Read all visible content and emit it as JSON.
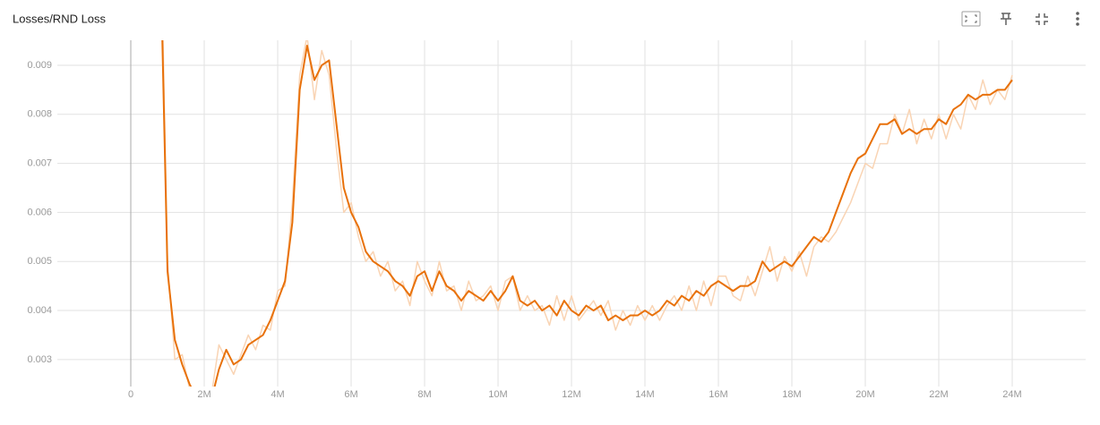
{
  "chart_data": {
    "type": "line",
    "title": "Losses/RND Loss",
    "xlim": [
      -2000000,
      26000000
    ],
    "ylim": [
      0.00245,
      0.00951
    ],
    "yticks": [
      0.003,
      0.004,
      0.005,
      0.006,
      0.007,
      0.008,
      0.009
    ],
    "xticks": [
      {
        "value": 0,
        "label": "0"
      },
      {
        "value": 2000000,
        "label": "2M"
      },
      {
        "value": 4000000,
        "label": "4M"
      },
      {
        "value": 6000000,
        "label": "6M"
      },
      {
        "value": 8000000,
        "label": "8M"
      },
      {
        "value": 10000000,
        "label": "10M"
      },
      {
        "value": 12000000,
        "label": "12M"
      },
      {
        "value": 14000000,
        "label": "14M"
      },
      {
        "value": 16000000,
        "label": "16M"
      },
      {
        "value": 18000000,
        "label": "18M"
      },
      {
        "value": 20000000,
        "label": "20M"
      },
      {
        "value": 22000000,
        "label": "22M"
      },
      {
        "value": 24000000,
        "label": "24M"
      }
    ],
    "grid": true,
    "x": [
      800000,
      1000000,
      1200000,
      1400000,
      1600000,
      1800000,
      2000000,
      2200000,
      2400000,
      2600000,
      2800000,
      3000000,
      3200000,
      3400000,
      3600000,
      3800000,
      4000000,
      4200000,
      4400000,
      4600000,
      4800000,
      5000000,
      5200000,
      5400000,
      5600000,
      5800000,
      6000000,
      6200000,
      6400000,
      6600000,
      6800000,
      7000000,
      7200000,
      7400000,
      7600000,
      7800000,
      8000000,
      8200000,
      8400000,
      8600000,
      8800000,
      9000000,
      9200000,
      9400000,
      9600000,
      9800000,
      10000000,
      10200000,
      10400000,
      10600000,
      10800000,
      11000000,
      11200000,
      11400000,
      11600000,
      11800000,
      12000000,
      12200000,
      12400000,
      12600000,
      12800000,
      13000000,
      13200000,
      13400000,
      13600000,
      13800000,
      14000000,
      14200000,
      14400000,
      14600000,
      14800000,
      15000000,
      15200000,
      15400000,
      15600000,
      15800000,
      16000000,
      16200000,
      16400000,
      16600000,
      16800000,
      17000000,
      17200000,
      17400000,
      17600000,
      17800000,
      18000000,
      18200000,
      18400000,
      18600000,
      18800000,
      19000000,
      19200000,
      19400000,
      19600000,
      19800000,
      20000000,
      20200000,
      20400000,
      20600000,
      20800000,
      21000000,
      21200000,
      21400000,
      21600000,
      21800000,
      22000000,
      22200000,
      22400000,
      22600000,
      22800000,
      23000000,
      23200000,
      23400000,
      23600000,
      23800000,
      24000000
    ],
    "series": [
      {
        "color": "#f9d4b4",
        "width": 1.5,
        "values": [
          0.0125,
          0.005,
          0.003,
          0.0031,
          0.0024,
          0.0021,
          0.002,
          0.0023,
          0.0033,
          0.003,
          0.0027,
          0.0031,
          0.0035,
          0.0032,
          0.0037,
          0.0036,
          0.0044,
          0.0045,
          0.0062,
          0.0088,
          0.0096,
          0.0083,
          0.0093,
          0.0088,
          0.0073,
          0.006,
          0.0062,
          0.0055,
          0.005,
          0.0052,
          0.0047,
          0.005,
          0.0044,
          0.0046,
          0.0041,
          0.005,
          0.0046,
          0.0043,
          0.005,
          0.0044,
          0.0045,
          0.004,
          0.0046,
          0.0042,
          0.0043,
          0.0045,
          0.004,
          0.0046,
          0.0047,
          0.004,
          0.0043,
          0.004,
          0.0041,
          0.0037,
          0.0043,
          0.0038,
          0.0043,
          0.0038,
          0.004,
          0.0042,
          0.0039,
          0.0042,
          0.0036,
          0.004,
          0.0037,
          0.0041,
          0.0038,
          0.0041,
          0.0038,
          0.0041,
          0.0043,
          0.004,
          0.0045,
          0.004,
          0.0046,
          0.0041,
          0.0047,
          0.0047,
          0.0043,
          0.0042,
          0.0047,
          0.0043,
          0.0048,
          0.0053,
          0.0046,
          0.0051,
          0.0048,
          0.0052,
          0.0047,
          0.0053,
          0.0055,
          0.0054,
          0.0056,
          0.0059,
          0.0062,
          0.0066,
          0.007,
          0.0069,
          0.0074,
          0.0074,
          0.008,
          0.0076,
          0.0081,
          0.0074,
          0.0079,
          0.0075,
          0.008,
          0.0075,
          0.008,
          0.0077,
          0.0084,
          0.0081,
          0.0087,
          0.0082,
          0.0085,
          0.0083,
          0.0088
        ]
      },
      {
        "color": "#e8710a",
        "width": 2,
        "values": [
          0.0115,
          0.0048,
          0.0034,
          0.0029,
          0.0025,
          0.0022,
          0.0021,
          0.0022,
          0.0028,
          0.0032,
          0.0029,
          0.003,
          0.0033,
          0.0034,
          0.0035,
          0.0038,
          0.0042,
          0.0046,
          0.0058,
          0.0085,
          0.0094,
          0.0087,
          0.009,
          0.0091,
          0.0078,
          0.0065,
          0.006,
          0.0057,
          0.0052,
          0.005,
          0.0049,
          0.0048,
          0.0046,
          0.0045,
          0.0043,
          0.0047,
          0.0048,
          0.0044,
          0.0048,
          0.0045,
          0.0044,
          0.0042,
          0.0044,
          0.0043,
          0.0042,
          0.0044,
          0.0042,
          0.0044,
          0.0047,
          0.0042,
          0.0041,
          0.0042,
          0.004,
          0.0041,
          0.0039,
          0.0042,
          0.004,
          0.0039,
          0.0041,
          0.004,
          0.0041,
          0.0038,
          0.0039,
          0.0038,
          0.0039,
          0.0039,
          0.004,
          0.0039,
          0.004,
          0.0042,
          0.0041,
          0.0043,
          0.0042,
          0.0044,
          0.0043,
          0.0045,
          0.0046,
          0.0045,
          0.0044,
          0.0045,
          0.0045,
          0.0046,
          0.005,
          0.0048,
          0.0049,
          0.005,
          0.0049,
          0.0051,
          0.0053,
          0.0055,
          0.0054,
          0.0056,
          0.006,
          0.0064,
          0.0068,
          0.0071,
          0.0072,
          0.0075,
          0.0078,
          0.0078,
          0.0079,
          0.0076,
          0.0077,
          0.0076,
          0.0077,
          0.0077,
          0.0079,
          0.0078,
          0.0081,
          0.0082,
          0.0084,
          0.0083,
          0.0084,
          0.0084,
          0.0085,
          0.0085,
          0.0087
        ]
      }
    ]
  }
}
